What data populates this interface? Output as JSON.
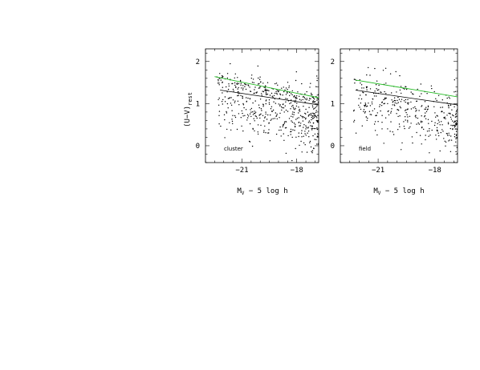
{
  "chart_data": [
    {
      "type": "scatter",
      "panel_label": "cluster",
      "xlabel": "M_V − 5 log h",
      "xlabel_main": "M",
      "xlabel_sub": "V",
      "xlabel_rest": " − 5 log h",
      "ylabel": "(U−V)_rest",
      "ylabel_main": "(U−V)",
      "ylabel_sub": "rest",
      "xlim": [
        -23,
        -16.8
      ],
      "ylim": [
        -0.4,
        2.3
      ],
      "xticks": [
        -21,
        -18
      ],
      "yticks": [
        0,
        1,
        2
      ],
      "xtick_labels": [
        "−21",
        "−18"
      ],
      "ytick_labels": [
        "0",
        "1",
        "2"
      ],
      "black_line": [
        [
          -22.2,
          1.32
        ],
        [
          -16.8,
          0.97
        ]
      ],
      "green_line": [
        [
          -22.5,
          1.64
        ],
        [
          -16.8,
          1.14
        ]
      ],
      "red_sequence_points": 140,
      "blue_cloud_points": 430,
      "seed": 7
    },
    {
      "type": "scatter",
      "panel_label": "field",
      "xlabel": "M_V − 5 log h",
      "xlabel_main": "M",
      "xlabel_sub": "V",
      "xlabel_rest": " − 5 log h",
      "ylabel": "",
      "xlim": [
        -23,
        -16.8
      ],
      "ylim": [
        -0.4,
        2.3
      ],
      "xticks": [
        -21,
        -18
      ],
      "yticks": [
        0,
        1,
        2
      ],
      "xtick_labels": [
        "−21",
        "−18"
      ],
      "ytick_labels": [
        "0",
        "1",
        "2"
      ],
      "black_line": [
        [
          -22.2,
          1.32
        ],
        [
          -16.8,
          0.97
        ]
      ],
      "green_line": [
        [
          -22.2,
          1.56
        ],
        [
          -16.8,
          1.16
        ]
      ],
      "red_sequence_points": 25,
      "blue_cloud_points": 360,
      "seed": 23
    }
  ],
  "colors": {
    "axes": "#000000",
    "points": "#000000",
    "black_line": "#000000",
    "green_line": "#22bb22"
  }
}
